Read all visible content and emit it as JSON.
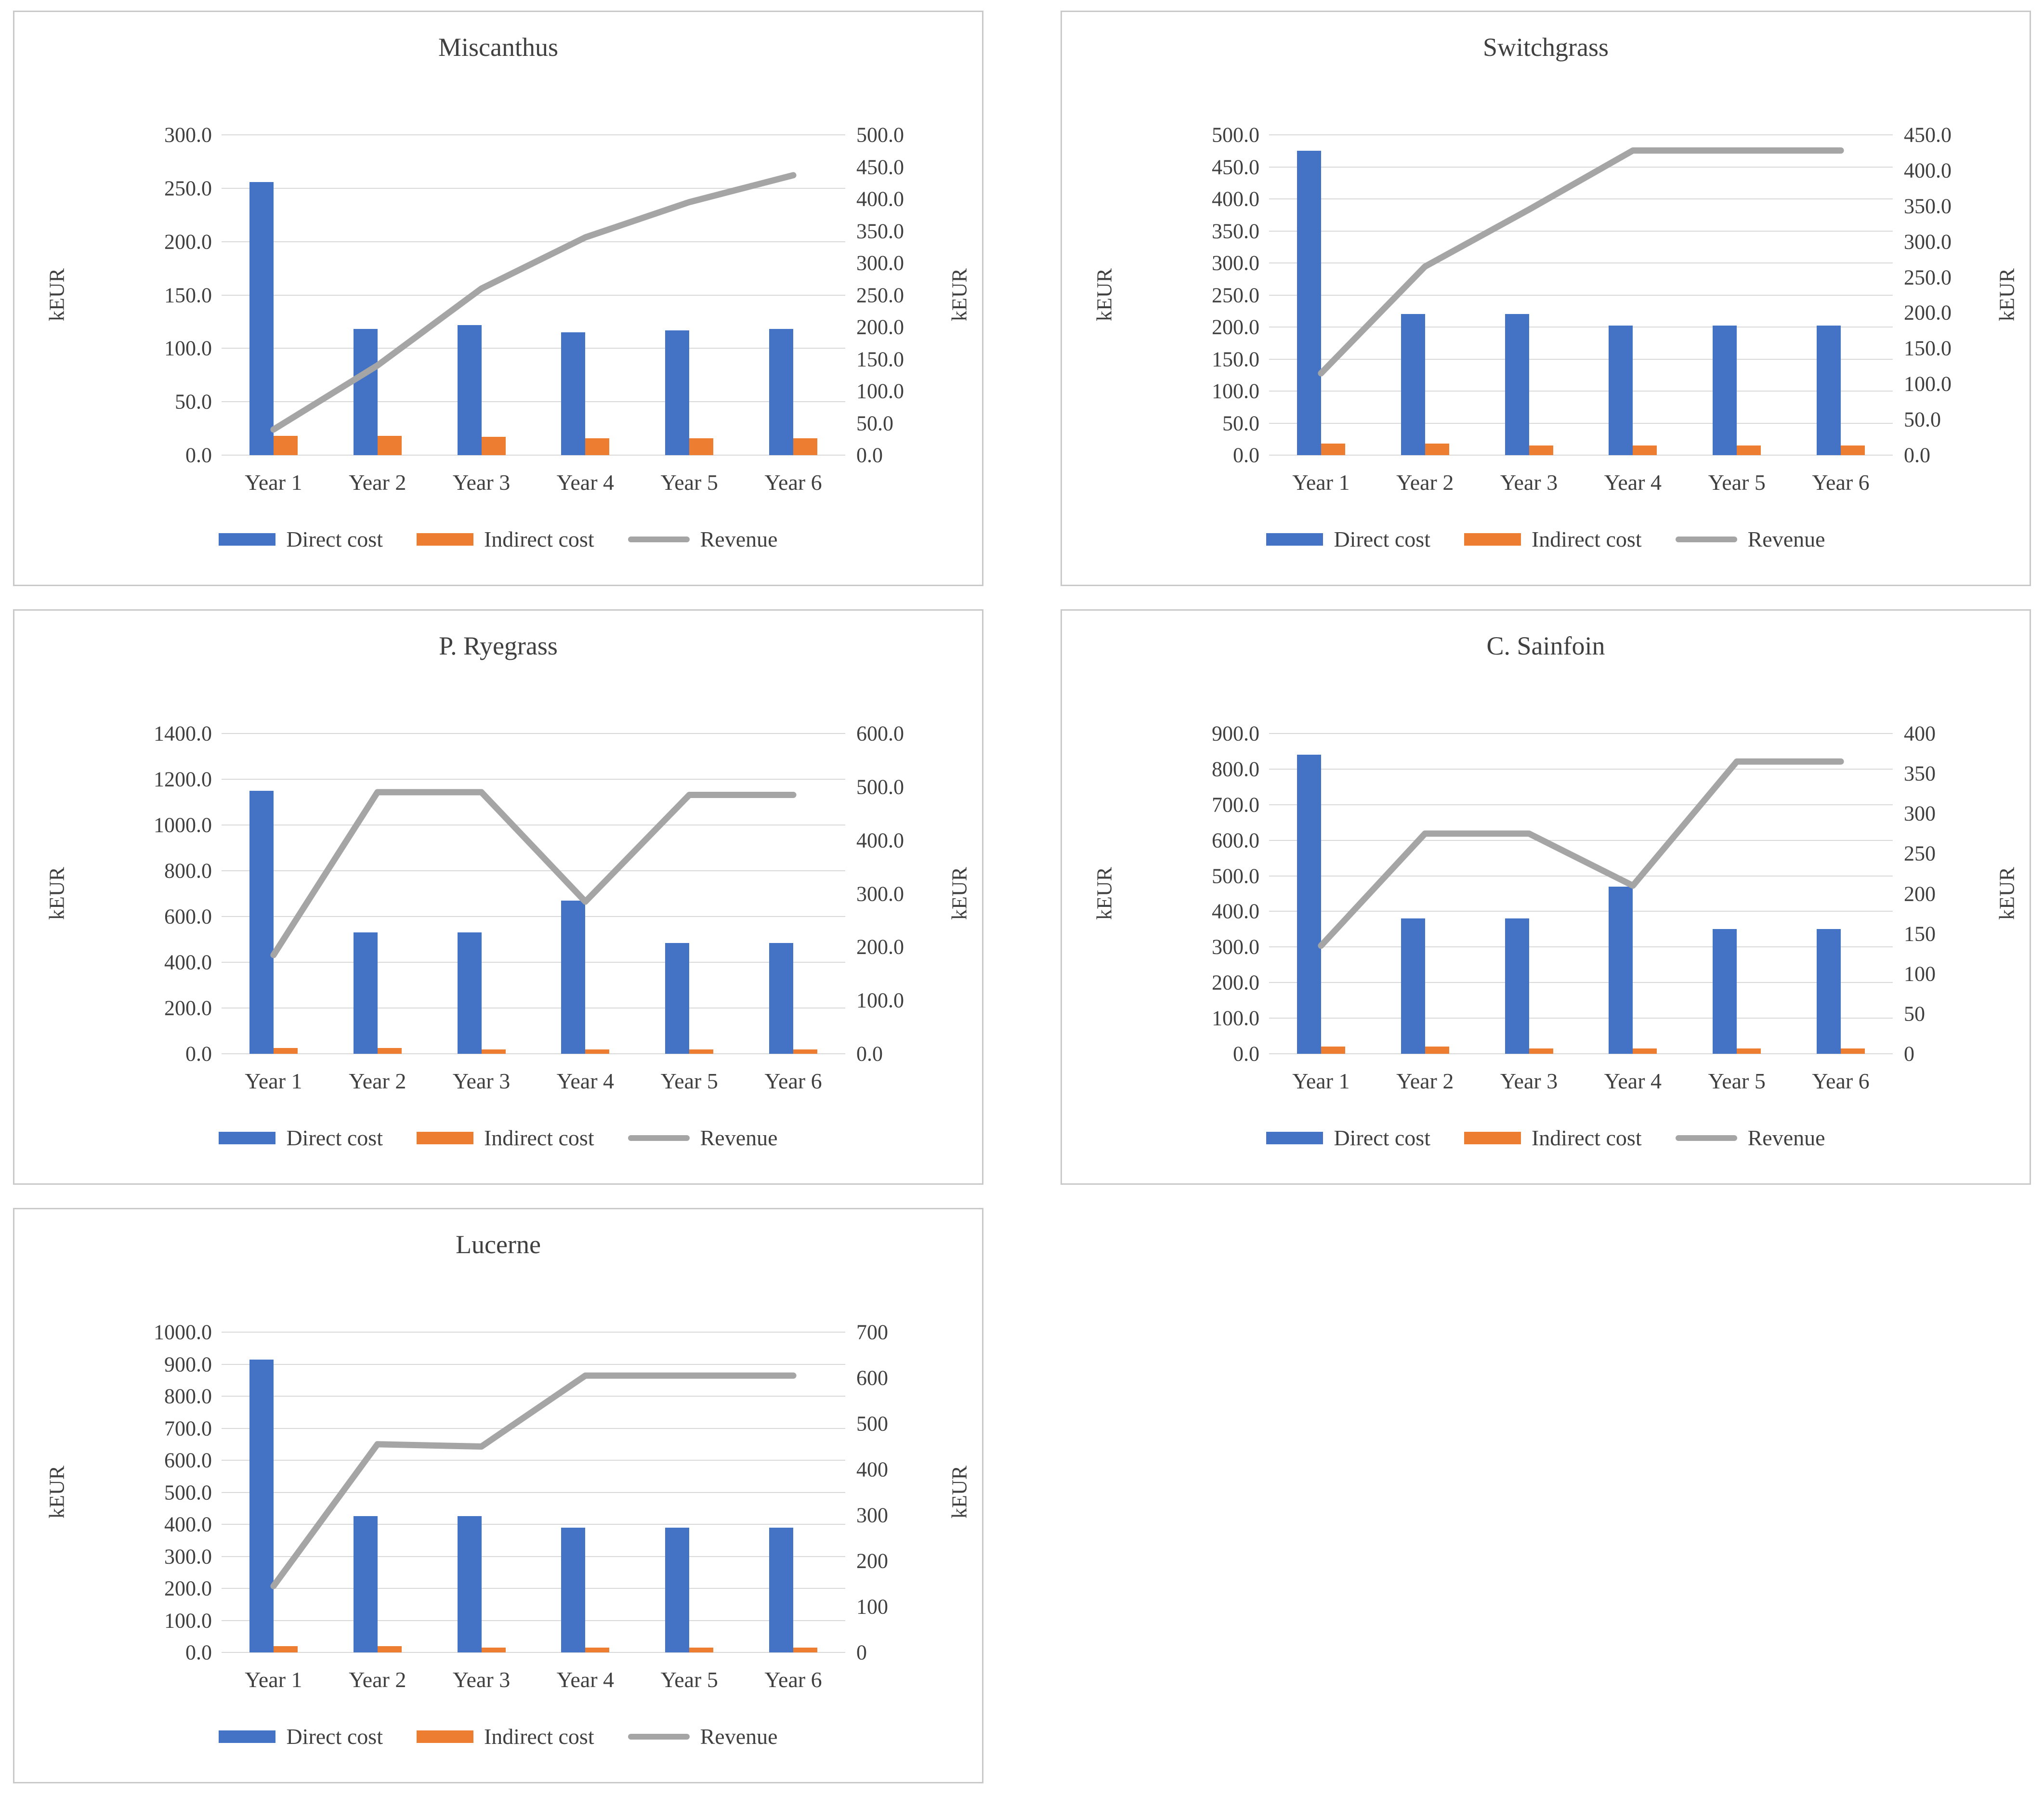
{
  "page": {
    "background": "#FFFFFF"
  },
  "colors": {
    "direct": "#4472C4",
    "indirect": "#ED7D31",
    "revenue": "#A5A5A5",
    "gridline": "#D9D9D9",
    "box_border": "#C9C9C9",
    "text": "#404040"
  },
  "legend_labels": [
    "Direct cost",
    "Indirect cost",
    "Revenue"
  ],
  "chart_data": [
    {
      "type": "combo-bar-line",
      "title": "Miscanthus",
      "categories": [
        "Year 1",
        "Year 2",
        "Year 3",
        "Year 4",
        "Year 5",
        "Year 6"
      ],
      "series": [
        {
          "name": "Direct cost",
          "type": "bar",
          "axis": "left",
          "values": [
            256,
            118,
            122,
            115,
            117,
            118
          ]
        },
        {
          "name": "Indirect cost",
          "type": "bar",
          "axis": "left",
          "values": [
            18,
            18,
            17,
            16,
            16,
            16
          ]
        },
        {
          "name": "Revenue",
          "type": "line",
          "axis": "right",
          "values": [
            40,
            140,
            260,
            340,
            395,
            437
          ]
        }
      ],
      "left_axis": {
        "label": "kEUR",
        "min": 0,
        "max": 300,
        "step": 50,
        "decimals": 1
      },
      "right_axis": {
        "label": "kEUR",
        "min": 0,
        "max": 500,
        "step": 50,
        "decimals": 1
      },
      "legend_position": "bottom",
      "grid": true
    },
    {
      "type": "combo-bar-line",
      "title": "Switchgrass",
      "categories": [
        "Year 1",
        "Year 2",
        "Year 3",
        "Year 4",
        "Year 5",
        "Year 6"
      ],
      "series": [
        {
          "name": "Direct cost",
          "type": "bar",
          "axis": "left",
          "values": [
            475,
            220,
            220,
            202,
            202,
            202
          ]
        },
        {
          "name": "Indirect cost",
          "type": "bar",
          "axis": "left",
          "values": [
            18,
            18,
            15,
            15,
            15,
            15
          ]
        },
        {
          "name": "Revenue",
          "type": "line",
          "axis": "right",
          "values": [
            115,
            265,
            345,
            428,
            428,
            428
          ]
        }
      ],
      "left_axis": {
        "label": "kEUR",
        "min": 0,
        "max": 500,
        "step": 50,
        "decimals": 1
      },
      "right_axis": {
        "label": "kEUR",
        "min": 0,
        "max": 450,
        "step": 50,
        "decimals": 1
      },
      "legend_position": "bottom",
      "grid": true
    },
    {
      "type": "combo-bar-line",
      "title": "P. Ryegrass",
      "categories": [
        "Year 1",
        "Year 2",
        "Year 3",
        "Year 4",
        "Year 5",
        "Year 6"
      ],
      "series": [
        {
          "name": "Direct cost",
          "type": "bar",
          "axis": "left",
          "values": [
            1150,
            530,
            530,
            670,
            485,
            485
          ]
        },
        {
          "name": "Indirect cost",
          "type": "bar",
          "axis": "left",
          "values": [
            25,
            25,
            20,
            20,
            20,
            20
          ]
        },
        {
          "name": "Revenue",
          "type": "line",
          "axis": "right",
          "values": [
            185,
            490,
            490,
            285,
            485,
            485
          ]
        }
      ],
      "left_axis": {
        "label": "kEUR",
        "min": 0,
        "max": 1400,
        "step": 200,
        "decimals": 1
      },
      "right_axis": {
        "label": "kEUR",
        "min": 0,
        "max": 600,
        "step": 100,
        "decimals": 1
      },
      "legend_position": "bottom",
      "grid": true
    },
    {
      "type": "combo-bar-line",
      "title": "C. Sainfoin",
      "categories": [
        "Year 1",
        "Year 2",
        "Year 3",
        "Year 4",
        "Year 5",
        "Year 6"
      ],
      "series": [
        {
          "name": "Direct cost",
          "type": "bar",
          "axis": "left",
          "values": [
            840,
            380,
            380,
            470,
            350,
            350
          ]
        },
        {
          "name": "Indirect cost",
          "type": "bar",
          "axis": "left",
          "values": [
            20,
            20,
            15,
            15,
            15,
            15
          ]
        },
        {
          "name": "Revenue",
          "type": "line",
          "axis": "right",
          "values": [
            135,
            275,
            275,
            210,
            365,
            365
          ]
        }
      ],
      "left_axis": {
        "label": "kEUR",
        "min": 0,
        "max": 900,
        "step": 100,
        "decimals": 1
      },
      "right_axis": {
        "label": "kEUR",
        "min": 0,
        "max": 400,
        "step": 50,
        "decimals": 0
      },
      "legend_position": "bottom",
      "grid": true
    },
    {
      "type": "combo-bar-line",
      "title": "Lucerne",
      "categories": [
        "Year 1",
        "Year 2",
        "Year 3",
        "Year 4",
        "Year 5",
        "Year 6"
      ],
      "series": [
        {
          "name": "Direct cost",
          "type": "bar",
          "axis": "left",
          "values": [
            915,
            425,
            425,
            390,
            390,
            390
          ]
        },
        {
          "name": "Indirect cost",
          "type": "bar",
          "axis": "left",
          "values": [
            20,
            20,
            15,
            15,
            15,
            15
          ]
        },
        {
          "name": "Revenue",
          "type": "line",
          "axis": "right",
          "values": [
            145,
            455,
            450,
            605,
            605,
            605
          ]
        }
      ],
      "left_axis": {
        "label": "kEUR",
        "min": 0,
        "max": 1000,
        "step": 100,
        "decimals": 1
      },
      "right_axis": {
        "label": "kEUR",
        "min": 0,
        "max": 700,
        "step": 100,
        "decimals": 0
      },
      "legend_position": "bottom",
      "grid": true
    }
  ]
}
